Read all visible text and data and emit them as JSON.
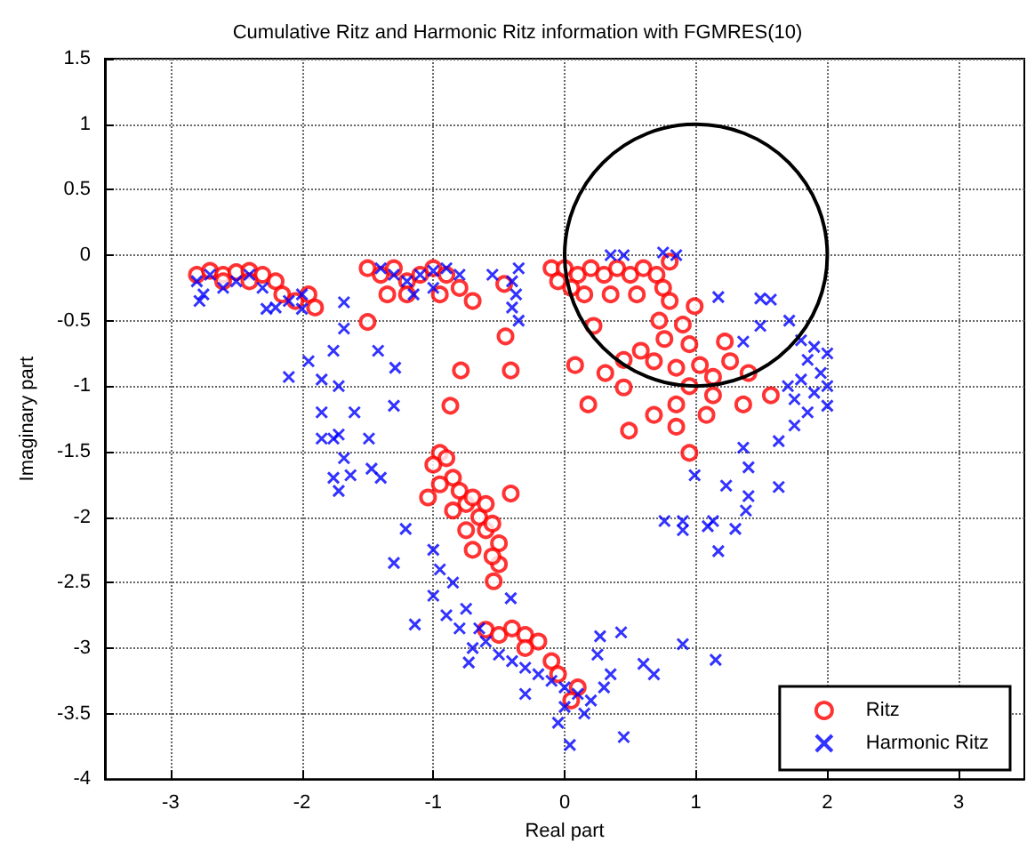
{
  "chart_data": {
    "type": "scatter",
    "title": "Cumulative Ritz and Harmonic Ritz information with FGMRES(10)",
    "xlabel": "Real part",
    "ylabel": "Imaginary part",
    "xlim": [
      -3.5,
      3.5
    ],
    "xticks": [
      -3,
      -2,
      -1,
      0,
      1,
      2,
      3
    ],
    "ylim": [
      -4,
      1.5
    ],
    "yticks": [
      -4,
      -3.5,
      -3,
      -2.5,
      -2,
      -1.5,
      -1,
      -0.5,
      0,
      0.5,
      1,
      1.5
    ],
    "grid": true,
    "legend": "bottom right",
    "series": [
      {
        "name": "Ritz",
        "color": "#ff0000",
        "marker": "circle",
        "x": [
          -2.8,
          -2.7,
          -2.6,
          -2.5,
          -2.4,
          -2.3,
          -2.2,
          -2.15,
          -2.05,
          -1.95,
          -1.9,
          -2.4,
          -2.6,
          -1.5,
          -1.4,
          -1.3,
          -1.2,
          -1.1,
          -1.0,
          -0.9,
          -1.35,
          -1.2,
          -0.95,
          -0.8,
          -0.7,
          -1.5,
          -0.79,
          -0.41,
          -0.87,
          -0.45,
          -0.46,
          -0.1,
          -0.05,
          0,
          0.1,
          0.2,
          0.3,
          0.4,
          0.5,
          0.6,
          0.7,
          0.75,
          0.8,
          0.8,
          0.15,
          0.35,
          0.55,
          0.05,
          0.72,
          0.9,
          0.99,
          0.22,
          0.08,
          0.58,
          0.76,
          0.95,
          1.22,
          0.45,
          0.68,
          0.85,
          1.03,
          1.26,
          1.4,
          1.13,
          0.95,
          1.13,
          1.36,
          0.85,
          0.68,
          0.49,
          0.85,
          0.95,
          0.31,
          0.18,
          0.45,
          1.57,
          1.08,
          -0.95,
          -1.04,
          -0.41,
          -0.54,
          -0.5,
          -1.0,
          -0.9,
          -0.85,
          -0.95,
          -0.8,
          -0.75,
          -0.7,
          -0.65,
          -0.6,
          -0.55,
          -0.5,
          -0.6,
          -0.75,
          -0.85,
          -0.7,
          -0.55,
          -0.6,
          -0.5,
          -0.4,
          -0.3,
          -0.2,
          -0.1,
          -0.05,
          -0.3,
          0.1,
          0.05
        ],
        "values": [
          -0.15,
          -0.12,
          -0.15,
          -0.13,
          -0.12,
          -0.15,
          -0.2,
          -0.3,
          -0.35,
          -0.3,
          -0.4,
          -0.2,
          -0.2,
          -0.1,
          -0.15,
          -0.1,
          -0.2,
          -0.15,
          -0.1,
          -0.15,
          -0.3,
          -0.3,
          -0.3,
          -0.25,
          -0.35,
          -0.51,
          -0.88,
          -0.88,
          -1.15,
          -0.62,
          -0.22,
          -0.1,
          -0.2,
          -0.1,
          -0.15,
          -0.1,
          -0.15,
          -0.1,
          -0.15,
          -0.1,
          -0.15,
          -0.25,
          -0.05,
          -0.35,
          -0.3,
          -0.3,
          -0.3,
          -0.25,
          -0.5,
          -0.53,
          -0.39,
          -0.54,
          -0.84,
          -0.73,
          -0.64,
          -0.68,
          -0.66,
          -0.8,
          -0.81,
          -0.86,
          -0.84,
          -0.81,
          -0.9,
          -0.93,
          -1.0,
          -1.07,
          -1.14,
          -1.14,
          -1.22,
          -1.34,
          -1.31,
          -1.51,
          -0.9,
          -1.14,
          -1.01,
          -1.07,
          -1.22,
          -1.51,
          -1.85,
          -1.82,
          -2.49,
          -2.36,
          -1.6,
          -1.55,
          -1.7,
          -1.75,
          -1.8,
          -1.9,
          -1.85,
          -2.0,
          -2.1,
          -2.05,
          -2.2,
          -1.9,
          -2.1,
          -1.95,
          -2.25,
          -2.3,
          -2.86,
          -2.9,
          -2.85,
          -2.9,
          -2.95,
          -3.1,
          -3.2,
          -3.0,
          -3.3,
          -3.4
        ]
      },
      {
        "name": "Harmonic Ritz",
        "color": "#0000ff",
        "marker": "cross",
        "x": [
          -2.8,
          -2.7,
          -2.6,
          -2.5,
          -2.4,
          -2.3,
          -2.75,
          -2.2,
          -2.1,
          -2.0,
          -2.78,
          -2.27,
          -2.0,
          -1.68,
          -1.68,
          -1.76,
          -1.95,
          -2.1,
          -1.85,
          -1.72,
          -1.85,
          -1.72,
          -1.85,
          -1.68,
          -1.49,
          -1.47,
          -1.76,
          -1.42,
          -1.29,
          -1.3,
          -1.6,
          -1.76,
          -1.63,
          -1.4,
          -1.72,
          -1.4,
          -1.3,
          -1.2,
          -1.1,
          -1.0,
          -0.9,
          -0.8,
          -1.15,
          -1.0,
          -0.35,
          -0.4,
          -0.37,
          -0.4,
          -0.35,
          -0.55,
          0.35,
          0.45,
          0.75,
          0.85,
          1.17,
          1.49,
          1.57,
          1.71,
          1.49,
          1.36,
          1.8,
          1.9,
          2.0,
          1.85,
          1.95,
          1.8,
          2.0,
          1.9,
          1.75,
          1.85,
          1.75,
          2.0,
          1.7,
          1.63,
          1.36,
          1.4,
          0.99,
          1.23,
          1.63,
          1.4,
          1.38,
          0.76,
          0.9,
          1.13,
          0.9,
          1.09,
          1.3,
          1.17,
          0.9,
          1.15,
          0.45,
          0.68,
          0.6,
          -1.0,
          -0.95,
          -1.0,
          -0.9,
          -0.8,
          -0.75,
          -0.85,
          -0.65,
          -0.6,
          -0.7,
          -1.21,
          -1.3,
          -1.14,
          -0.73,
          -0.41,
          -0.5,
          -0.4,
          -0.3,
          -0.2,
          -0.1,
          0.0,
          0.1,
          0.2,
          0.3,
          0.35,
          0.25,
          0.15,
          0.04,
          0.27,
          0.43,
          -0.05,
          -0.3,
          0.0
        ],
        "values": [
          -0.2,
          -0.15,
          -0.25,
          -0.2,
          -0.15,
          -0.25,
          -0.3,
          -0.4,
          -0.35,
          -0.3,
          -0.35,
          -0.41,
          -0.41,
          -0.36,
          -0.56,
          -0.73,
          -0.81,
          -0.93,
          -0.95,
          -1.0,
          -1.2,
          -1.37,
          -1.4,
          -1.55,
          -1.4,
          -1.63,
          -1.7,
          -0.73,
          -0.86,
          -1.15,
          -1.2,
          -1.4,
          -1.68,
          -1.7,
          -1.8,
          -0.1,
          -0.15,
          -0.2,
          -0.15,
          -0.12,
          -0.1,
          -0.15,
          -0.3,
          -0.25,
          -0.1,
          -0.2,
          -0.3,
          -0.4,
          -0.5,
          -0.15,
          0.0,
          0.0,
          0.02,
          0.0,
          -0.32,
          -0.33,
          -0.34,
          -0.5,
          -0.54,
          -0.66,
          -0.65,
          -0.7,
          -0.75,
          -0.8,
          -0.9,
          -0.95,
          -1.0,
          -1.05,
          -1.1,
          -1.2,
          -1.3,
          -1.15,
          -1.0,
          -1.42,
          -1.47,
          -1.62,
          -1.68,
          -1.76,
          -1.77,
          -1.84,
          -1.95,
          -2.03,
          -2.03,
          -2.03,
          -2.1,
          -2.07,
          -2.09,
          -2.26,
          -2.97,
          -3.09,
          -3.68,
          -3.2,
          -3.12,
          -2.25,
          -2.4,
          -2.6,
          -2.75,
          -2.85,
          -2.7,
          -2.5,
          -2.85,
          -2.95,
          -3.0,
          -2.09,
          -2.35,
          -2.82,
          -3.11,
          -2.62,
          -3.05,
          -3.1,
          -3.15,
          -3.2,
          -3.25,
          -3.3,
          -3.35,
          -3.4,
          -3.3,
          -3.2,
          -3.05,
          -3.5,
          -3.74,
          -2.91,
          -2.88,
          -3.57,
          -3.35,
          -3.45
        ]
      }
    ]
  }
}
